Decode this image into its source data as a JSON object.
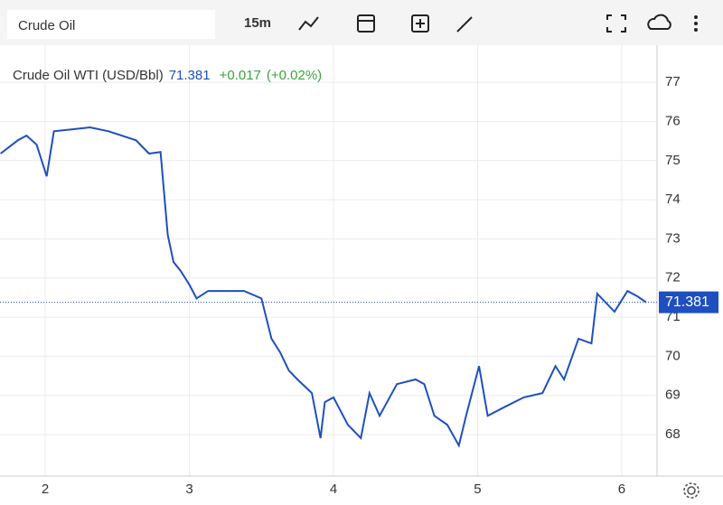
{
  "toolbar": {
    "search": "Crude Oil",
    "interval": "15m"
  },
  "chart_data": {
    "type": "line",
    "title": "Crude Oil WTI (USD/Bbl)",
    "last_value": 71.381,
    "change": "+0.017",
    "change_pct": "(+0.02%)",
    "x": [
      1.69,
      1.81,
      1.87,
      1.94,
      2.01,
      2.06,
      2.19,
      2.31,
      2.44,
      2.53,
      2.63,
      2.72,
      2.8,
      2.85,
      2.89,
      2.94,
      3.0,
      3.05,
      3.13,
      3.25,
      3.38,
      3.5,
      3.57,
      3.63,
      3.69,
      3.75,
      3.85,
      3.91,
      3.94,
      4.0,
      4.1,
      4.19,
      4.25,
      4.32,
      4.44,
      4.57,
      4.63,
      4.7,
      4.79,
      4.87,
      4.92,
      5.01,
      5.07,
      5.19,
      5.32,
      5.45,
      5.54,
      5.6,
      5.7,
      5.79,
      5.83,
      5.95,
      6.04,
      6.11,
      6.17
    ],
    "series": [
      {
        "name": "Crude Oil WTI",
        "color": "#1f4fbf",
        "values": [
          75.18,
          75.52,
          75.64,
          75.41,
          74.6,
          75.75,
          75.8,
          75.85,
          75.75,
          75.64,
          75.52,
          75.18,
          75.22,
          73.1,
          72.41,
          72.18,
          71.83,
          71.48,
          71.67,
          71.67,
          71.67,
          71.48,
          70.45,
          70.1,
          69.64,
          69.41,
          69.06,
          67.91,
          68.83,
          68.95,
          68.25,
          67.91,
          69.06,
          68.48,
          69.29,
          69.41,
          69.29,
          68.48,
          68.25,
          67.72,
          68.48,
          69.75,
          68.48,
          68.71,
          68.95,
          69.06,
          69.75,
          69.41,
          70.45,
          70.33,
          71.6,
          71.14,
          71.67,
          71.53,
          71.38
        ]
      }
    ],
    "xlim": [
      1.686,
      6.245
    ],
    "ylim": [
      66.94,
      77.95
    ],
    "xticks": [
      2,
      3,
      4,
      5,
      6
    ],
    "yticks": [
      68,
      69,
      70,
      71,
      72,
      73,
      74,
      75,
      76,
      77
    ],
    "grid": true
  }
}
